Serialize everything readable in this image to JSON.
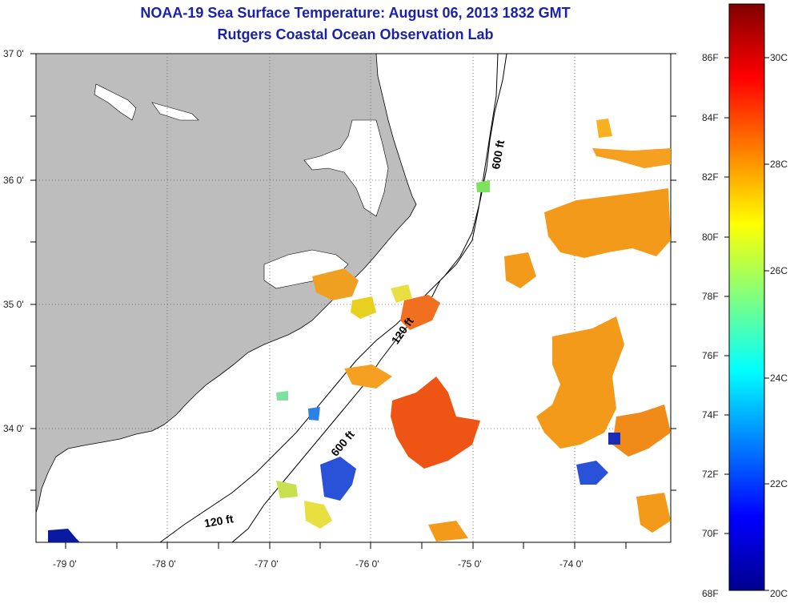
{
  "title": {
    "line1": "NOAA-19 Sea Surface Temperature:  August 06, 2013 1832 GMT",
    "line2": "Rutgers Coastal Ocean Observation Lab"
  },
  "map": {
    "lat_labels": [
      "37 0'",
      "36 0'",
      "35 0'",
      "34 0'"
    ],
    "lon_labels": [
      "-79 0'",
      "-78 0'",
      "-77 0'",
      "-76 0'",
      "-75 0'",
      "-74 0'"
    ],
    "contour_labels": [
      "600 ft",
      "120 ft",
      "600 ft",
      "120 ft"
    ]
  },
  "colorbar": {
    "fahrenheit": [
      "86F",
      "84F",
      "82F",
      "80F",
      "78F",
      "76F",
      "74F",
      "72F",
      "70F",
      "68F"
    ],
    "celsius": [
      "30C",
      "28C",
      "26C",
      "24C",
      "22C",
      "20C"
    ]
  },
  "colors": {
    "land": "#bdbdbd",
    "title": "#1a23a8"
  }
}
